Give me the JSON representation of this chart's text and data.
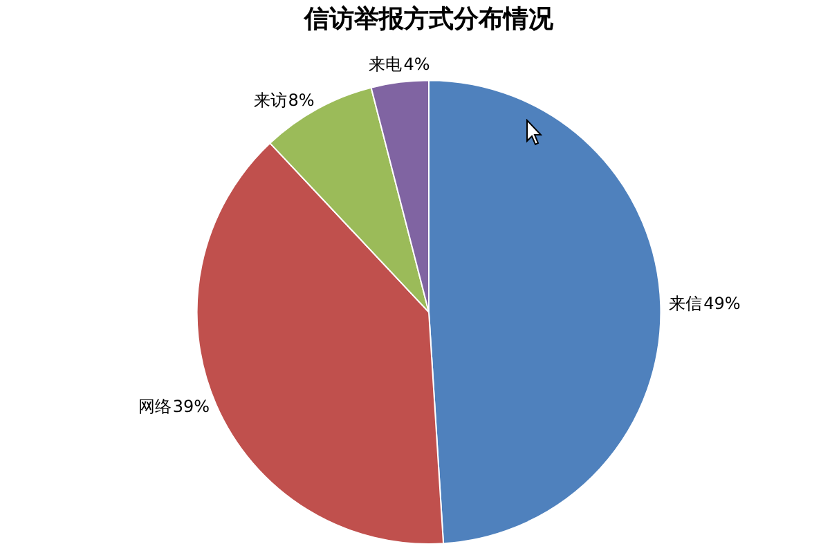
{
  "chart_data": {
    "type": "pie",
    "title": "信访举报方式分布情况",
    "categories": [
      "来信",
      "网络",
      "来访",
      "来电"
    ],
    "values": [
      49,
      39,
      8,
      4
    ],
    "colors": [
      "#4f81bd",
      "#c0504d",
      "#9bbb59",
      "#8064a2"
    ],
    "value_labels": [
      "49%",
      "39%",
      "8%",
      "4%"
    ],
    "legend": false
  }
}
